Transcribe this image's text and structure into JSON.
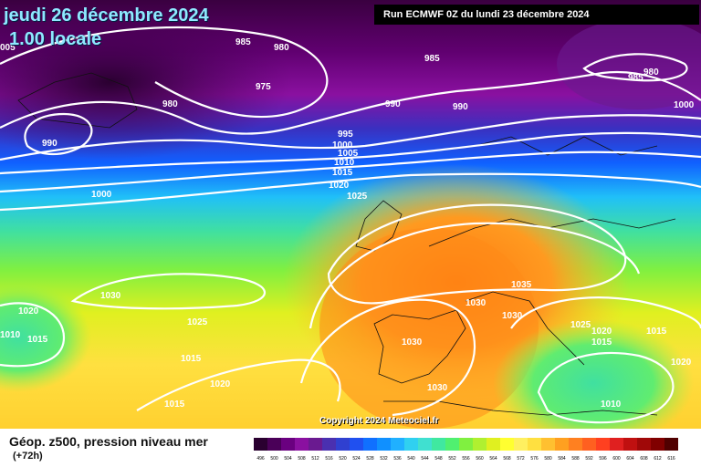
{
  "header": {
    "date": "jeudi 26 décembre 2024",
    "time": "1.00 locale",
    "run": "Run ECMWF 0Z du lundi 23 décembre 2024"
  },
  "map": {
    "copyright": "Copyright 2024 Meteociel.fr",
    "isobar_labels": [
      "985",
      "980",
      "975",
      "980",
      "990",
      "985",
      "990",
      "1000",
      "995",
      "1000",
      "1005",
      "1010",
      "1015",
      "1020",
      "1025",
      "990",
      "980",
      "985",
      "1000",
      "1030",
      "1025",
      "1015",
      "1020",
      "1015",
      "1020",
      "1010",
      "1015",
      "1035",
      "1030",
      "1030",
      "1030",
      "1025",
      "1020",
      "1015",
      "1015",
      "1020",
      "1030",
      "1010",
      "005"
    ]
  },
  "footer": {
    "parameter": "Géop. z500, pression niveau mer",
    "lead_time": "(+72h)"
  },
  "legend": {
    "labels": [
      "496",
      "500",
      "504",
      "508",
      "512",
      "516",
      "520",
      "524",
      "528",
      "532",
      "536",
      "540",
      "544",
      "548",
      "552",
      "556",
      "560",
      "564",
      "568",
      "572",
      "576",
      "580",
      "584",
      "588",
      "592",
      "596",
      "600",
      "604",
      "608",
      "612",
      "616"
    ],
    "colors": [
      "#2a0030",
      "#4a0058",
      "#6a0080",
      "#8a10a0",
      "#6a1a90",
      "#4a30b0",
      "#3040d0",
      "#2050f0",
      "#1070ff",
      "#1090ff",
      "#20b0ff",
      "#30d0f0",
      "#40e0d0",
      "#40e8a0",
      "#50f070",
      "#80f040",
      "#b0f030",
      "#e0f020",
      "#ffff30",
      "#fff060",
      "#ffe040",
      "#ffc030",
      "#ffa020",
      "#ff8020",
      "#ff6020",
      "#ff4020",
      "#e02020",
      "#c01010",
      "#a00808",
      "#800000",
      "#500000"
    ]
  }
}
